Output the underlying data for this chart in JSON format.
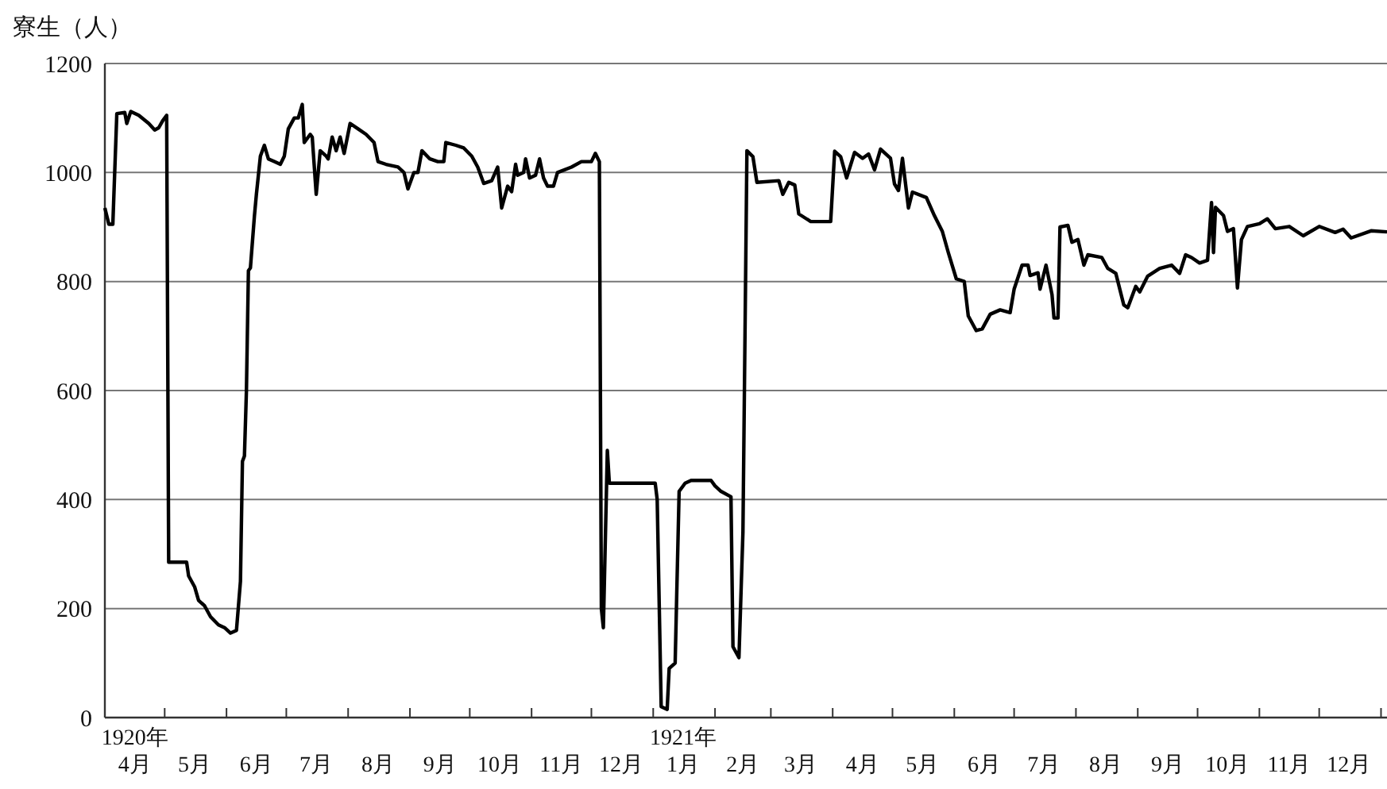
{
  "chart_data": {
    "type": "line",
    "ylabel": "寮生（人）",
    "xlim": [
      "1920-04-01",
      "1922-01-04"
    ],
    "ylim": [
      0,
      1200
    ],
    "yticks": [
      0,
      200,
      400,
      600,
      800,
      1000,
      1200
    ],
    "grid": "y",
    "xticks": [
      {
        "value": "1920-04-01",
        "label": null
      },
      {
        "value": "1920-05-01",
        "label": null
      },
      {
        "value": "1920-06-01",
        "label": null
      },
      {
        "value": "1920-07-01",
        "label": null
      },
      {
        "value": "1920-08-01",
        "label": null
      },
      {
        "value": "1920-09-01",
        "label": null
      },
      {
        "value": "1920-10-01",
        "label": null
      },
      {
        "value": "1920-11-01",
        "label": null
      },
      {
        "value": "1920-12-01",
        "label": null
      },
      {
        "value": "1921-01-01",
        "label": null
      },
      {
        "value": "1921-02-01",
        "label": null
      },
      {
        "value": "1921-03-01",
        "label": null
      },
      {
        "value": "1921-04-01",
        "label": null
      },
      {
        "value": "1921-05-01",
        "label": null
      },
      {
        "value": "1921-06-01",
        "label": null
      },
      {
        "value": "1921-07-01",
        "label": null
      },
      {
        "value": "1921-08-01",
        "label": null
      },
      {
        "value": "1921-09-01",
        "label": null
      },
      {
        "value": "1921-10-01",
        "label": null
      },
      {
        "value": "1921-11-01",
        "label": null
      },
      {
        "value": "1921-12-01",
        "label": null
      },
      {
        "value": "1922-01-01",
        "label": null
      },
      {
        "value": "1920-04-16",
        "label": "1920年\n4月"
      },
      {
        "value": "1920-05-16",
        "label": "5月"
      },
      {
        "value": "1920-06-16",
        "label": "6月"
      },
      {
        "value": "1920-07-16",
        "label": "7月"
      },
      {
        "value": "1920-08-16",
        "label": "8月"
      },
      {
        "value": "1920-09-16",
        "label": "9月"
      },
      {
        "value": "1920-10-16",
        "label": "10月"
      },
      {
        "value": "1920-11-16",
        "label": "11月"
      },
      {
        "value": "1920-12-16",
        "label": "12月"
      },
      {
        "value": "1921-01-16",
        "label": "1921年\n1月"
      },
      {
        "value": "1921-02-15",
        "label": "2月"
      },
      {
        "value": "1921-03-16",
        "label": "3月"
      },
      {
        "value": "1921-04-16",
        "label": "4月"
      },
      {
        "value": "1921-05-16",
        "label": "5月"
      },
      {
        "value": "1921-06-16",
        "label": "6月"
      },
      {
        "value": "1921-07-16",
        "label": "7月"
      },
      {
        "value": "1921-08-16",
        "label": "8月"
      },
      {
        "value": "1921-09-16",
        "label": "9月"
      },
      {
        "value": "1921-10-16",
        "label": "10月"
      },
      {
        "value": "1921-11-16",
        "label": "11月"
      },
      {
        "value": "1921-12-16",
        "label": "12月"
      }
    ],
    "series": [
      {
        "color": "#000000",
        "line_style": "solid",
        "x": [
          "1920-04-01",
          "1920-04-03",
          "1920-04-05",
          "1920-04-07",
          "1920-04-11",
          "1920-04-12",
          "1920-04-14",
          "1920-04-18",
          "1920-04-23",
          "1920-04-26",
          "1920-04-28",
          "1920-04-30",
          "1920-05-02",
          "1920-05-03",
          "1920-05-12",
          "1920-05-13",
          "1920-05-16",
          "1920-05-18",
          "1920-05-21",
          "1920-05-24",
          "1920-05-28",
          "1920-05-31",
          "1920-06-03",
          "1920-06-06",
          "1920-06-08",
          "1920-06-09",
          "1920-06-10",
          "1920-06-11",
          "1920-06-12",
          "1920-06-13",
          "1920-06-15",
          "1920-06-16",
          "1920-06-18",
          "1920-06-20",
          "1920-06-22",
          "1920-06-25",
          "1920-06-28",
          "1920-06-30",
          "1920-07-02",
          "1920-07-05",
          "1920-07-07",
          "1920-07-09",
          "1920-07-10",
          "1920-07-13",
          "1920-07-14",
          "1920-07-16",
          "1920-07-18",
          "1920-07-21",
          "1920-07-22",
          "1920-07-24",
          "1920-07-26",
          "1920-07-28",
          "1920-07-30",
          "1920-08-02",
          "1920-08-06",
          "1920-08-10",
          "1920-08-14",
          "1920-08-16",
          "1920-08-20",
          "1920-08-26",
          "1920-08-29",
          "1920-08-31",
          "1920-09-03",
          "1920-09-05",
          "1920-09-07",
          "1920-09-11",
          "1920-09-15",
          "1920-09-18",
          "1920-09-19",
          "1920-09-24",
          "1920-09-28",
          "1920-10-02",
          "1920-10-05",
          "1920-10-08",
          "1920-10-12",
          "1920-10-15",
          "1920-10-17",
          "1920-10-20",
          "1920-10-22",
          "1920-10-24",
          "1920-10-25",
          "1920-10-28",
          "1920-10-29",
          "1920-10-31",
          "1920-11-03",
          "1920-11-05",
          "1920-11-07",
          "1920-11-09",
          "1920-11-12",
          "1920-11-14",
          "1920-11-21",
          "1920-11-26",
          "1920-12-01",
          "1920-12-03",
          "1920-12-05",
          "1920-12-06",
          "1920-12-07",
          "1920-12-09",
          "1920-12-10",
          "1921-01-02",
          "1921-01-03",
          "1921-01-05",
          "1921-01-08",
          "1921-01-09",
          "1921-01-12",
          "1921-01-14",
          "1921-01-17",
          "1921-01-20",
          "1921-01-30",
          "1921-02-01",
          "1921-02-04",
          "1921-02-09",
          "1921-02-10",
          "1921-02-13",
          "1921-02-15",
          "1921-02-17",
          "1921-02-20",
          "1921-02-22",
          "1921-03-05",
          "1921-03-07",
          "1921-03-10",
          "1921-03-13",
          "1921-03-15",
          "1921-03-21",
          "1921-03-31",
          "1921-04-02",
          "1921-04-05",
          "1921-04-08",
          "1921-04-12",
          "1921-04-16",
          "1921-04-19",
          "1921-04-22",
          "1921-04-25",
          "1921-04-30",
          "1921-05-02",
          "1921-05-04",
          "1921-05-06",
          "1921-05-09",
          "1921-05-11",
          "1921-05-18",
          "1921-05-22",
          "1921-05-26",
          "1921-05-29",
          "1921-06-02",
          "1921-06-06",
          "1921-06-08",
          "1921-06-12",
          "1921-06-15",
          "1921-06-19",
          "1921-06-24",
          "1921-06-29",
          "1921-07-01",
          "1921-07-05",
          "1921-07-08",
          "1921-07-09",
          "1921-07-13",
          "1921-07-14",
          "1921-07-17",
          "1921-07-20",
          "1921-07-21",
          "1921-07-23",
          "1921-07-24",
          "1921-07-28",
          "1921-07-30",
          "1921-08-02",
          "1921-08-05",
          "1921-08-07",
          "1921-08-14",
          "1921-08-17",
          "1921-08-21",
          "1921-08-25",
          "1921-08-27",
          "1921-08-31",
          "1921-09-02",
          "1921-09-06",
          "1921-09-12",
          "1921-09-18",
          "1921-09-22",
          "1921-09-25",
          "1921-09-28",
          "1921-10-02",
          "1921-10-06",
          "1921-10-08",
          "1921-10-09",
          "1921-10-10",
          "1921-10-14",
          "1921-10-16",
          "1921-10-19",
          "1921-10-21",
          "1921-10-23",
          "1921-10-26",
          "1921-11-01",
          "1921-11-05",
          "1921-11-09",
          "1921-11-16",
          "1921-11-23",
          "1921-12-01",
          "1921-12-09",
          "1921-12-13",
          "1921-12-17",
          "1921-12-27",
          "1922-01-04"
        ],
        "values": [
          935,
          905,
          905,
          1108,
          1110,
          1090,
          1112,
          1105,
          1090,
          1078,
          1082,
          1095,
          1105,
          285,
          285,
          260,
          240,
          215,
          205,
          185,
          170,
          165,
          155,
          160,
          250,
          470,
          480,
          600,
          820,
          825,
          920,
          960,
          1030,
          1050,
          1025,
          1020,
          1015,
          1030,
          1080,
          1100,
          1100,
          1125,
          1055,
          1070,
          1065,
          960,
          1040,
          1030,
          1025,
          1065,
          1040,
          1065,
          1035,
          1090,
          1080,
          1070,
          1055,
          1020,
          1015,
          1010,
          1000,
          970,
          1000,
          1000,
          1040,
          1025,
          1020,
          1020,
          1055,
          1050,
          1045,
          1030,
          1010,
          980,
          985,
          1010,
          935,
          975,
          965,
          1015,
          995,
          1000,
          1025,
          990,
          995,
          1025,
          990,
          975,
          975,
          1000,
          1010,
          1020,
          1020,
          1035,
          1020,
          200,
          165,
          490,
          430,
          430,
          400,
          20,
          15,
          90,
          100,
          415,
          430,
          435,
          435,
          425,
          415,
          405,
          130,
          110,
          340,
          1040,
          1029,
          982,
          985,
          960,
          982,
          977,
          924,
          910,
          910,
          1039,
          1029,
          990,
          1037,
          1026,
          1034,
          1005,
          1043,
          1026,
          979,
          967,
          1026,
          935,
          964,
          954,
          921,
          892,
          853,
          805,
          800,
          737,
          710,
          713,
          740,
          748,
          743,
          786,
          830,
          830,
          811,
          816,
          786,
          830,
          776,
          733,
          733,
          900,
          903,
          872,
          877,
          830,
          849,
          844,
          824,
          815,
          757,
          752,
          791,
          781,
          810,
          824,
          830,
          815,
          849,
          844,
          834,
          839,
          945,
          853,
          936,
          921,
          892,
          897,
          788,
          877,
          901,
          906,
          915,
          897,
          901,
          884,
          901,
          890,
          896,
          880,
          893,
          891
        ]
      }
    ]
  }
}
